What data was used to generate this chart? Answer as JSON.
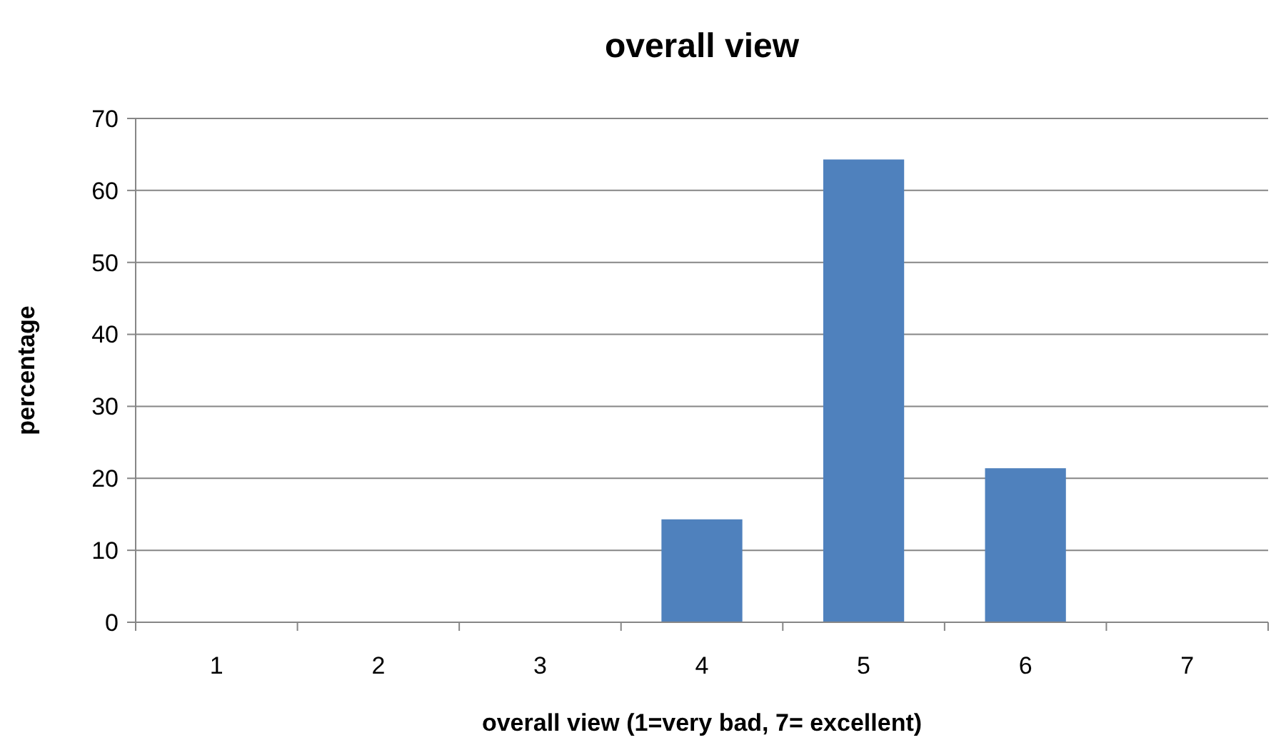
{
  "chart_data": {
    "type": "bar",
    "title": "overall view",
    "xlabel": "overall view (1=very bad, 7= excellent)",
    "ylabel": "percentage",
    "categories": [
      "1",
      "2",
      "3",
      "4",
      "5",
      "6",
      "7"
    ],
    "values": [
      0,
      0,
      0,
      14.3,
      64.3,
      21.4,
      0
    ],
    "color": "#4f81bd",
    "ylim": [
      0,
      70
    ],
    "yticks": [
      0,
      10,
      20,
      30,
      40,
      50,
      60,
      70
    ],
    "grid": "y"
  }
}
